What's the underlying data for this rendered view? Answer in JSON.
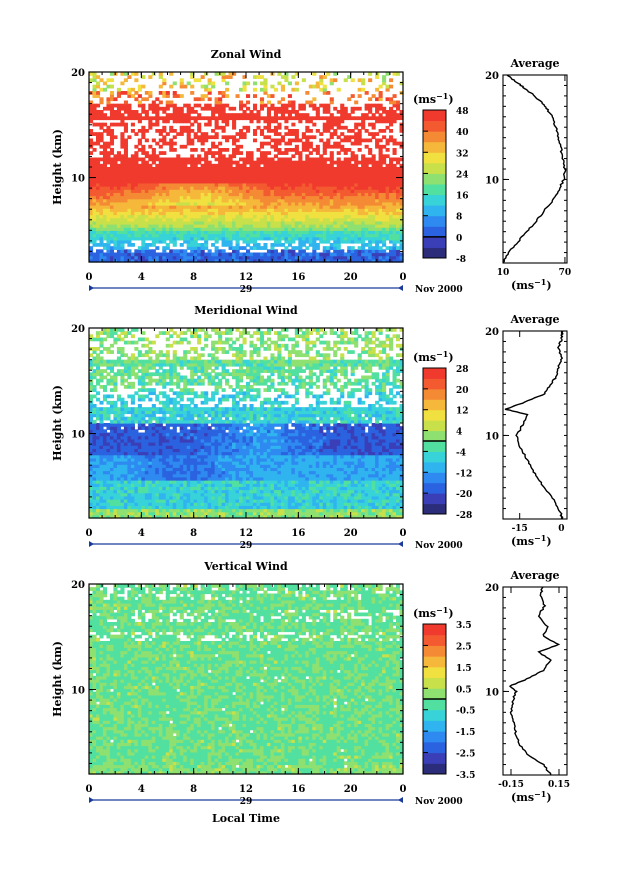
{
  "figure": {
    "xlabel": "Local Time",
    "date_day": "29",
    "date_label": "Nov 2000",
    "ylabel": "Height (km)",
    "avg_title": "Average",
    "unit": "(ms",
    "unit_sup": "−1",
    "colormap": [
      "#2b2d7a",
      "#3a3fb8",
      "#2a62e0",
      "#2e8af0",
      "#30b4f0",
      "#37d3d8",
      "#52e0a0",
      "#8ee070",
      "#c8e04a",
      "#f0e040",
      "#f5b83a",
      "#f58a35",
      "#f45a30",
      "#f03a2e"
    ]
  },
  "chart_data": [
    {
      "type": "heatmap",
      "title": "Zonal Wind",
      "x_ticks": [
        "0",
        "4",
        "8",
        "12",
        "16",
        "20",
        "0"
      ],
      "y_ticks": [
        "10",
        "20"
      ],
      "xlim": [
        0,
        24
      ],
      "ylim": [
        2,
        20
      ],
      "colorbar_ticks": [
        "48",
        "40",
        "32",
        "24",
        "16",
        "8",
        "0",
        "-8"
      ],
      "colorbar_range": [
        -8,
        48
      ],
      "profile": {
        "title": "Average",
        "x_ticks": [
          "10",
          "70"
        ],
        "y_ticks": [
          "10",
          "20"
        ],
        "xlim": [
          10,
          72
        ],
        "x": [
          10,
          15,
          24,
          33,
          42,
          50,
          58,
          64,
          69,
          70,
          68,
          66,
          64,
          61,
          58,
          52,
          46,
          38,
          30,
          22,
          14
        ],
        "y": [
          2.0,
          3.0,
          4.0,
          5.0,
          6.0,
          7.0,
          8.0,
          9.0,
          10.0,
          11.0,
          12.0,
          13.0,
          14.0,
          15.0,
          16.0,
          16.8,
          17.5,
          18.2,
          18.8,
          19.4,
          20.0
        ]
      }
    },
    {
      "type": "heatmap",
      "title": "Meridional Wind",
      "x_ticks": [
        "0",
        "4",
        "8",
        "12",
        "16",
        "20",
        "0"
      ],
      "y_ticks": [
        "10",
        "20"
      ],
      "xlim": [
        0,
        24
      ],
      "ylim": [
        2,
        20
      ],
      "colorbar_ticks": [
        "28",
        "20",
        "12",
        "4",
        "-4",
        "-12",
        "-20",
        "-28"
      ],
      "colorbar_range": [
        -28,
        28
      ],
      "profile": {
        "title": "Average",
        "x_ticks": [
          "-15",
          "0"
        ],
        "y_ticks": [
          "10",
          "20"
        ],
        "xlim": [
          -21,
          2
        ],
        "x": [
          0.5,
          -1,
          -3,
          -6,
          -9,
          -11,
          -13,
          -15,
          -16,
          -14,
          -12,
          -20,
          -13,
          -6,
          -4,
          -2,
          -1,
          0,
          -1,
          0,
          0.5
        ],
        "y": [
          2.0,
          3.0,
          4.0,
          5.0,
          6.0,
          7.0,
          8.0,
          9.0,
          10.0,
          11.0,
          12.0,
          12.5,
          13.2,
          14.0,
          14.8,
          15.6,
          16.5,
          17.4,
          18.4,
          19.2,
          20.0
        ]
      }
    },
    {
      "type": "heatmap",
      "title": "Vertical Wind",
      "x_ticks": [
        "0",
        "4",
        "8",
        "12",
        "16",
        "20",
        "0"
      ],
      "y_ticks": [
        "10",
        "20"
      ],
      "xlim": [
        0,
        24
      ],
      "ylim": [
        2,
        20
      ],
      "colorbar_ticks": [
        "3.5",
        "2.5",
        "1.5",
        "0.5",
        "-0.5",
        "-1.5",
        "-2.5",
        "-3.5"
      ],
      "colorbar_range": [
        -3.5,
        3.5
      ],
      "profile": {
        "title": "Average",
        "x_ticks": [
          "-0.15",
          "0.15"
        ],
        "y_ticks": [
          "10",
          "20"
        ],
        "xlim": [
          -0.2,
          0.2
        ],
        "x": [
          0.1,
          0.05,
          -0.05,
          -0.1,
          -0.12,
          -0.13,
          -0.15,
          -0.14,
          -0.12,
          -0.16,
          -0.05,
          0.05,
          0.1,
          0.02,
          0.15,
          0.05,
          0.08,
          0.02,
          0.06,
          0.03,
          0.05
        ],
        "y": [
          2.0,
          3.0,
          4.0,
          5.0,
          6.0,
          7.0,
          8.0,
          9.0,
          10.0,
          10.5,
          11.2,
          12.0,
          13.0,
          13.8,
          14.5,
          15.3,
          16.2,
          17.2,
          18.2,
          19.2,
          20.0
        ]
      }
    }
  ]
}
